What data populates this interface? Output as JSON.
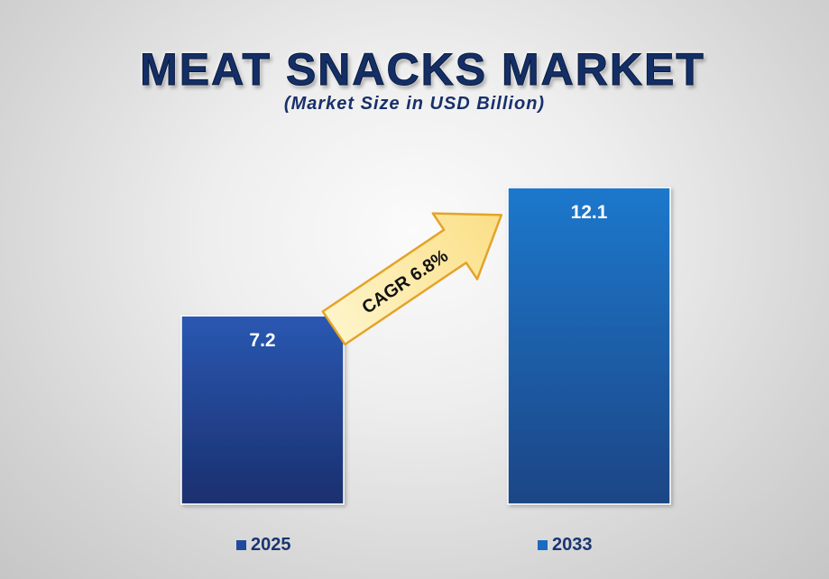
{
  "chart_data": {
    "type": "bar",
    "title": "MEAT SNACKS MARKET",
    "subtitle": "(Market Size in USD Billion)",
    "categories": [
      "2025",
      "2033"
    ],
    "values": [
      7.2,
      12.1
    ],
    "data_labels": [
      "7.2",
      "12.1"
    ],
    "colors": [
      "#1f4a9e",
      "#1b6bbf"
    ],
    "ylim": [
      0,
      13
    ],
    "grid": false,
    "legend": {
      "placement": "bottom",
      "entries": [
        "2025",
        "2033"
      ]
    },
    "annotation": {
      "text": "CAGR 6.8%",
      "shape": "arrow",
      "color": "#fde9a8"
    }
  }
}
